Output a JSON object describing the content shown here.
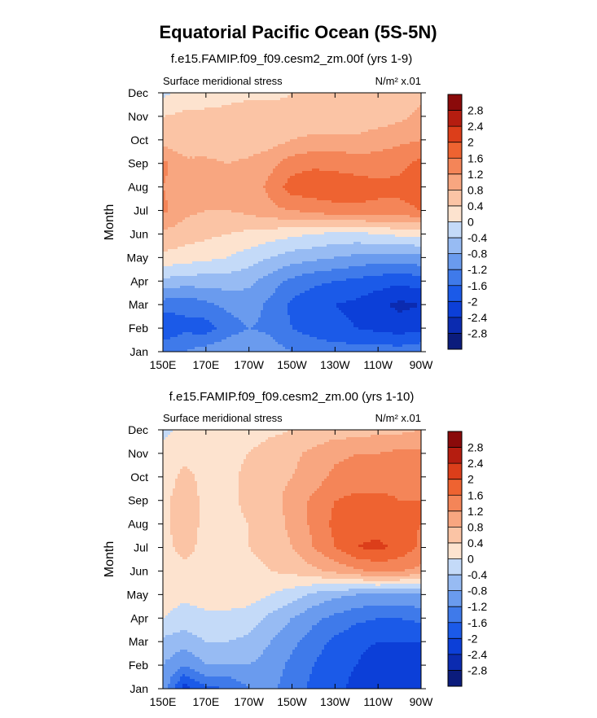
{
  "chart_data": [
    {
      "type": "heatmap",
      "title": "Equatorial Pacific Ocean (5S-5N)",
      "subtitle": "f.e15.FAMIP.f09_f09.cesm2_zm.00f (yrs 1-9)",
      "left_label": "Surface meridional stress",
      "units_label": "N/m² x.01",
      "xlabel": "",
      "ylabel": "Month",
      "xlim": [
        150,
        270
      ],
      "x_tick_values": [
        150,
        170,
        190,
        210,
        230,
        250,
        270
      ],
      "x_ticks": [
        "150E",
        "170E",
        "170W",
        "150W",
        "130W",
        "110W",
        "90W"
      ],
      "y_ticks": [
        "Jan",
        "Feb",
        "Mar",
        "Apr",
        "May",
        "Jun",
        "Jul",
        "Aug",
        "Sep",
        "Oct",
        "Nov",
        "Dec"
      ],
      "x": [
        150,
        160,
        170,
        180,
        190,
        200,
        210,
        220,
        230,
        240,
        250,
        260,
        270
      ],
      "values": [
        [
          -1.2,
          -1.2,
          -1.0,
          -0.9,
          -0.8,
          -1.0,
          -1.2,
          -1.3,
          -1.4,
          -1.4,
          -1.4,
          -1.4,
          -1.3
        ],
        [
          -2.0,
          -1.7,
          -1.8,
          -1.4,
          -1.2,
          -1.3,
          -1.6,
          -1.8,
          -1.9,
          -2.0,
          -2.1,
          -2.2,
          -2.1
        ],
        [
          -1.4,
          -1.5,
          -1.3,
          -1.1,
          -1.0,
          -1.3,
          -1.7,
          -1.9,
          -2.0,
          -2.1,
          -2.3,
          -2.5,
          -2.4
        ],
        [
          -0.5,
          -0.6,
          -0.6,
          -0.6,
          -0.7,
          -1.0,
          -1.3,
          -1.5,
          -1.6,
          -1.7,
          -1.8,
          -1.9,
          -1.8
        ],
        [
          0.3,
          0.2,
          0.1,
          0.0,
          -0.2,
          -0.4,
          -0.6,
          -0.7,
          -0.8,
          -0.9,
          -1.0,
          -1.0,
          -0.9
        ],
        [
          0.7,
          0.6,
          0.5,
          0.4,
          0.3,
          0.2,
          0.1,
          0.0,
          -0.1,
          -0.1,
          0.0,
          0.1,
          0.1
        ],
        [
          1.3,
          0.9,
          0.8,
          0.8,
          0.9,
          1.1,
          1.2,
          1.3,
          1.5,
          1.5,
          1.5,
          1.5,
          1.6
        ],
        [
          1.2,
          1.0,
          0.9,
          0.9,
          1.0,
          1.3,
          1.8,
          1.9,
          1.8,
          1.8,
          1.7,
          1.7,
          1.8
        ],
        [
          1.3,
          0.9,
          0.9,
          0.8,
          0.9,
          1.1,
          1.4,
          1.5,
          1.5,
          1.4,
          1.4,
          1.5,
          1.7
        ],
        [
          0.6,
          0.5,
          0.5,
          0.5,
          0.5,
          0.6,
          0.8,
          0.9,
          0.9,
          0.9,
          1.0,
          1.1,
          1.2
        ],
        [
          0.4,
          0.5,
          0.5,
          0.5,
          0.6,
          0.6,
          0.5,
          0.5,
          0.5,
          0.5,
          0.6,
          0.7,
          0.9
        ],
        [
          -0.1,
          0.1,
          0.2,
          0.3,
          0.3,
          0.3,
          0.4,
          0.4,
          0.4,
          0.5,
          0.6,
          0.6,
          0.7
        ]
      ],
      "colorbar": {
        "labels": [
          "-2.8",
          "-2.4",
          "-2",
          "-1.6",
          "-1.2",
          "-0.8",
          "-0.4",
          "0",
          "0.4",
          "0.8",
          "1.2",
          "1.6",
          "2",
          "2.4",
          "2.8"
        ],
        "levels": [
          -2.8,
          -2.4,
          -2.0,
          -1.6,
          -1.2,
          -0.8,
          -0.4,
          0,
          0.4,
          0.8,
          1.2,
          1.6,
          2.0,
          2.4,
          2.8
        ],
        "colors": [
          "#0b1c7c",
          "#0b2bb0",
          "#0c3fd8",
          "#1b5ae8",
          "#3f7aea",
          "#6a9bee",
          "#97bbf3",
          "#c4daf8",
          "#fde3cf",
          "#fbc4a5",
          "#f8a680",
          "#f48558",
          "#ee6331",
          "#dc3e1a",
          "#b51d10",
          "#8a0a0a"
        ]
      }
    },
    {
      "type": "heatmap",
      "subtitle": "f.e15.FAMIP.f09_f09.cesm2_zm.00 (yrs 1-10)",
      "left_label": "Surface meridional stress",
      "units_label": "N/m² x.01",
      "xlabel": "",
      "ylabel": "Month",
      "xlim": [
        150,
        270
      ],
      "x_tick_values": [
        150,
        170,
        190,
        210,
        230,
        250,
        270
      ],
      "x_ticks": [
        "150E",
        "170E",
        "170W",
        "150W",
        "130W",
        "110W",
        "90W"
      ],
      "y_ticks": [
        "Jan",
        "Feb",
        "Mar",
        "Apr",
        "May",
        "Jun",
        "Jul",
        "Aug",
        "Sep",
        "Oct",
        "Nov",
        "Dec"
      ],
      "x": [
        150,
        160,
        170,
        180,
        190,
        200,
        210,
        220,
        230,
        240,
        250,
        260,
        270
      ],
      "values": [
        [
          -0.9,
          -2.2,
          -1.7,
          -1.6,
          -1.2,
          -1.1,
          -1.4,
          -1.7,
          -1.9,
          -2.1,
          -2.2,
          -2.3,
          -2.4
        ],
        [
          -0.8,
          -1.2,
          -0.8,
          -0.8,
          -0.8,
          -1.0,
          -1.3,
          -1.6,
          -1.9,
          -2.0,
          -2.2,
          -2.4,
          -2.3
        ],
        [
          -0.5,
          -0.6,
          -0.4,
          -0.4,
          -0.5,
          -0.8,
          -1.1,
          -1.4,
          -1.7,
          -1.9,
          -2.0,
          -2.0,
          -2.0
        ],
        [
          0.0,
          -0.2,
          -0.1,
          -0.1,
          -0.2,
          -0.5,
          -0.8,
          -1.1,
          -1.3,
          -1.5,
          -1.6,
          -1.6,
          -1.5
        ],
        [
          0.2,
          0.1,
          0.2,
          0.2,
          0.2,
          0.0,
          -0.2,
          -0.5,
          -0.7,
          -0.8,
          -0.9,
          -0.9,
          -0.8
        ],
        [
          0.3,
          0.3,
          0.3,
          0.3,
          0.3,
          0.4,
          0.5,
          0.7,
          0.9,
          1.1,
          1.3,
          1.2,
          1.1
        ],
        [
          0.3,
          0.5,
          0.3,
          0.3,
          0.4,
          0.5,
          0.8,
          1.2,
          1.6,
          2.0,
          2.1,
          1.9,
          1.5
        ],
        [
          0.3,
          0.6,
          0.3,
          0.3,
          0.4,
          0.6,
          0.9,
          1.3,
          1.7,
          1.9,
          1.8,
          1.7,
          1.6
        ],
        [
          0.3,
          0.6,
          0.3,
          0.3,
          0.5,
          0.7,
          0.9,
          1.3,
          1.6,
          1.7,
          1.7,
          1.6,
          1.6
        ],
        [
          0.2,
          0.5,
          0.3,
          0.3,
          0.5,
          0.7,
          0.8,
          1.0,
          1.3,
          1.4,
          1.4,
          1.5,
          1.5
        ],
        [
          0.1,
          0.3,
          0.2,
          0.3,
          0.4,
          0.6,
          0.7,
          0.9,
          1.1,
          1.2,
          1.2,
          1.3,
          1.3
        ],
        [
          -0.1,
          0.1,
          0.0,
          0.1,
          0.2,
          0.3,
          0.4,
          0.5,
          0.6,
          0.6,
          0.7,
          0.7,
          0.8
        ]
      ],
      "colorbar": {
        "labels": [
          "-2.8",
          "-2.4",
          "-2",
          "-1.6",
          "-1.2",
          "-0.8",
          "-0.4",
          "0",
          "0.4",
          "0.8",
          "1.2",
          "1.6",
          "2",
          "2.4",
          "2.8"
        ],
        "levels": [
          -2.8,
          -2.4,
          -2.0,
          -1.6,
          -1.2,
          -0.8,
          -0.4,
          0,
          0.4,
          0.8,
          1.2,
          1.6,
          2.0,
          2.4,
          2.8
        ],
        "colors": [
          "#0b1c7c",
          "#0b2bb0",
          "#0c3fd8",
          "#1b5ae8",
          "#3f7aea",
          "#6a9bee",
          "#97bbf3",
          "#c4daf8",
          "#fde3cf",
          "#fbc4a5",
          "#f8a680",
          "#f48558",
          "#ee6331",
          "#dc3e1a",
          "#b51d10",
          "#8a0a0a"
        ]
      }
    }
  ]
}
